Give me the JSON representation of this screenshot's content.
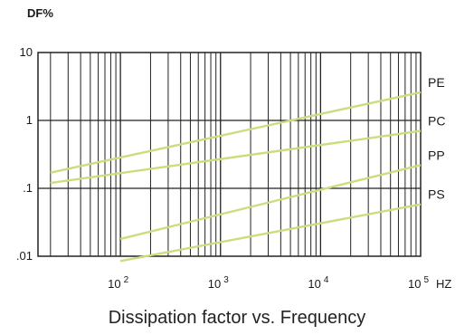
{
  "chart_data": {
    "type": "line",
    "title": "Dissipation factor vs. Frequency",
    "ylabel": "DF%",
    "xlabel": "HZ",
    "x_scale": "log",
    "y_scale": "log",
    "xlim": [
      15,
      100000
    ],
    "ylim": [
      0.01,
      10
    ],
    "grid": true,
    "ytick_labels": [
      {
        "value": 10,
        "label": "10"
      },
      {
        "value": 1,
        "label": "1"
      },
      {
        "value": 0.1,
        "label": ".1"
      },
      {
        "value": 0.01,
        "label": ".01"
      }
    ],
    "xtick_labels": [
      {
        "value": 100,
        "base": "10",
        "exp": "2"
      },
      {
        "value": 1000,
        "base": "10",
        "exp": "3"
      },
      {
        "value": 10000,
        "base": "10",
        "exp": "4"
      },
      {
        "value": 100000,
        "base": "10",
        "exp": "5"
      }
    ],
    "series": [
      {
        "name": "PE",
        "x": [
          20,
          100000
        ],
        "y": [
          0.17,
          2.6
        ]
      },
      {
        "name": "PC",
        "x": [
          20,
          100000
        ],
        "y": [
          0.12,
          0.7
        ]
      },
      {
        "name": "PP",
        "x": [
          100,
          100000
        ],
        "y": [
          0.018,
          0.22
        ]
      },
      {
        "name": "PS",
        "x": [
          100,
          100000
        ],
        "y": [
          0.0085,
          0.058
        ]
      }
    ],
    "line_color": "#c9de7e"
  }
}
